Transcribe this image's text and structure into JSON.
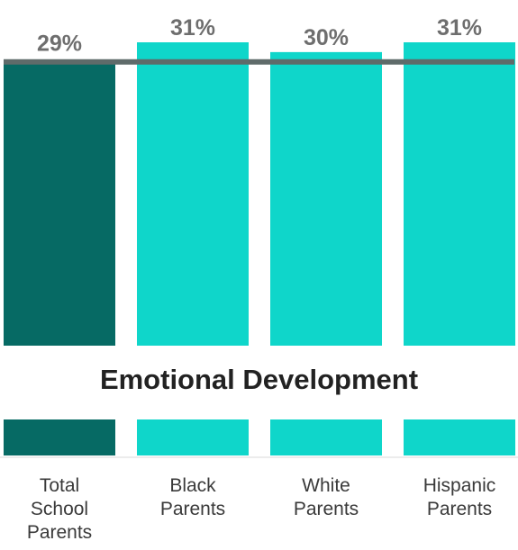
{
  "chart_data": {
    "type": "bar",
    "title": "Emotional Development",
    "categories": [
      "Total\nSchool\nParents",
      "Black\nParents",
      "White\nParents",
      "Hispanic\nParents"
    ],
    "values": [
      29,
      31,
      30,
      31
    ],
    "value_labels": [
      "29%",
      "31%",
      "30%",
      "31%"
    ],
    "colors": [
      "#066a64",
      "#0fd6ca",
      "#0fd6ca",
      "#0fd6ca"
    ],
    "reference_line": 29,
    "reference_line_color": "#5f6b6a",
    "ylim": [
      0,
      31
    ],
    "grid": false,
    "legend": "none"
  }
}
